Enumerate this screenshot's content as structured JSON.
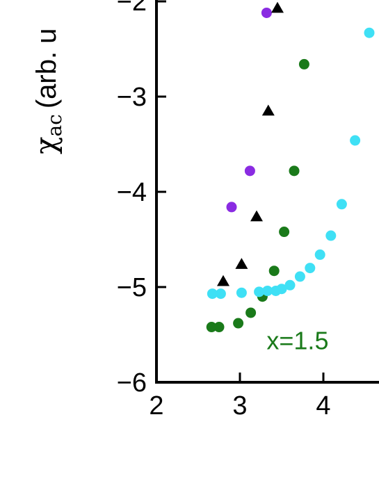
{
  "chart_data": {
    "type": "scatter",
    "title": "",
    "ylabel": {
      "symbol": "χ",
      "subscript": "ac",
      "unit": "(arb. u"
    },
    "xlabel": "",
    "xlim": [
      2,
      4.7
    ],
    "ylim": [
      -6,
      -2
    ],
    "xticks": [
      2,
      3,
      4
    ],
    "xtick_labels": [
      "2",
      "3",
      "4"
    ],
    "yticks": [
      -6,
      -5,
      -4,
      -3,
      -2
    ],
    "ytick_labels": [
      "−6",
      "−5",
      "−4",
      "−3",
      "−2"
    ],
    "grid": false,
    "annotations": [
      {
        "text": "x=1.5",
        "x": 3.32,
        "y": -5.55,
        "color": "#1a7a1a"
      }
    ],
    "series": [
      {
        "color": "#8a2be2",
        "marker": "circle",
        "x": [
          3.32,
          3.12,
          2.9
        ],
        "y": [
          -2.12,
          -3.78,
          -4.16
        ]
      },
      {
        "color": "#000000",
        "marker": "triangle",
        "x": [
          3.45,
          3.34,
          3.2,
          3.02,
          2.8
        ],
        "y": [
          -2.07,
          -3.15,
          -4.26,
          -4.76,
          -4.94
        ]
      },
      {
        "color": "#1a7a1a",
        "marker": "circle",
        "x": [
          3.77,
          3.65,
          3.53,
          3.41,
          3.27,
          3.13,
          2.98,
          2.75,
          2.66
        ],
        "y": [
          -2.66,
          -3.78,
          -4.42,
          -4.83,
          -5.1,
          -5.27,
          -5.38,
          -5.42,
          -5.42
        ]
      },
      {
        "color": "#3fe0f5",
        "marker": "circle",
        "x": [
          4.55,
          4.38,
          4.22,
          4.09,
          3.96,
          3.84,
          3.72,
          3.6,
          3.5,
          3.43,
          3.33,
          3.23,
          3.02,
          2.77,
          2.67
        ],
        "y": [
          -2.33,
          -3.46,
          -4.13,
          -4.46,
          -4.66,
          -4.8,
          -4.89,
          -4.98,
          -5.02,
          -5.04,
          -5.04,
          -5.05,
          -5.06,
          -5.07,
          -5.07
        ]
      }
    ]
  }
}
